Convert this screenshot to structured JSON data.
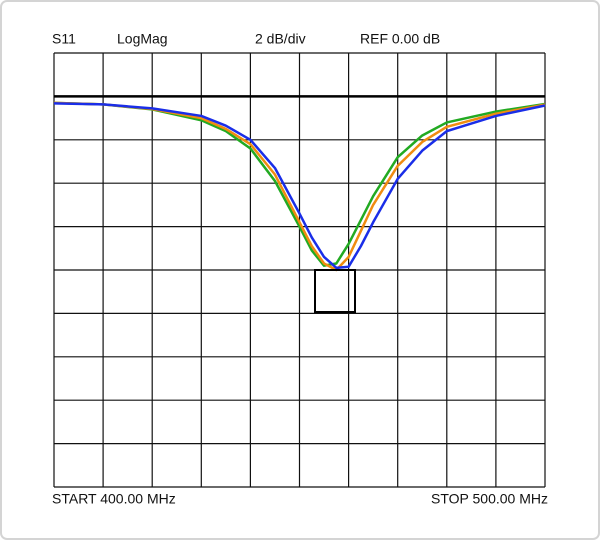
{
  "chart_data": {
    "type": "line",
    "trace": "S11",
    "format": "LogMag",
    "scale": "2 dB/div",
    "ref_label": "REF 0.00 dB",
    "start_label": "START 400.00 MHz",
    "stop_label": "STOP 500.00 MHz",
    "x": [
      400,
      410,
      420,
      430,
      435,
      440,
      445,
      450,
      452.5,
      455,
      457.5,
      460,
      462.5,
      465,
      470,
      475,
      480,
      490,
      500
    ],
    "series": [
      {
        "color": "#22aa22",
        "values": [
          -0.3,
          -0.37,
          -0.6,
          -1.1,
          -1.6,
          -2.4,
          -3.9,
          -6.0,
          -7.1,
          -7.8,
          -7.7,
          -6.8,
          -5.7,
          -4.6,
          -2.8,
          -1.8,
          -1.2,
          -0.7,
          -0.35
        ]
      },
      {
        "color": "#f08c10",
        "values": [
          -0.3,
          -0.37,
          -0.58,
          -1.0,
          -1.5,
          -2.2,
          -3.6,
          -5.8,
          -6.9,
          -7.7,
          -8.0,
          -7.4,
          -6.2,
          -5.0,
          -3.2,
          -2.1,
          -1.4,
          -0.8,
          -0.38
        ]
      },
      {
        "color": "#1a2ee8",
        "values": [
          -0.32,
          -0.37,
          -0.55,
          -0.9,
          -1.35,
          -2.0,
          -3.3,
          -5.4,
          -6.5,
          -7.4,
          -7.9,
          -7.85,
          -6.9,
          -5.8,
          -3.8,
          -2.5,
          -1.6,
          -0.9,
          -0.42
        ]
      }
    ],
    "reference": 0,
    "xlim": [
      400,
      500
    ],
    "xticks": [
      400,
      410,
      420,
      430,
      440,
      450,
      460,
      470,
      480,
      490,
      500
    ],
    "ylim": [
      -18,
      2
    ],
    "yticks": [
      -18,
      -16,
      -14,
      -12,
      -10,
      -8,
      -6,
      -4,
      -2,
      0,
      2
    ],
    "grid": true
  }
}
